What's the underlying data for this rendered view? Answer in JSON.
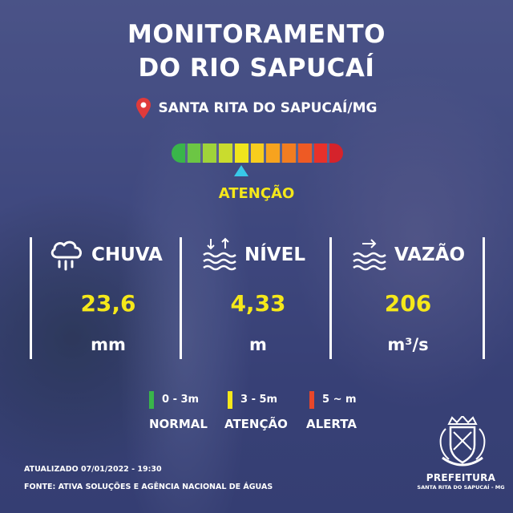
{
  "title": {
    "line1": "MONITORAMENTO",
    "line2": "DO RIO SAPUCAÍ"
  },
  "location": {
    "icon": "map-pin-icon",
    "text": "SANTA RITA DO SAPUCAÍ/MG"
  },
  "scale": {
    "colors": [
      "#39b54a",
      "#6cc644",
      "#9fd33a",
      "#c9dc2e",
      "#f0e51d",
      "#f7cd1e",
      "#f7a31e",
      "#f27d20",
      "#ee5a24",
      "#e8312a",
      "#d5232b"
    ],
    "current_index": 4,
    "status": "ATENÇÃO",
    "pointer_color": "#38c8e8"
  },
  "metrics": {
    "chuva": {
      "icon": "rain-cloud-icon",
      "label": "CHUVA",
      "value": "23,6",
      "unit": "mm"
    },
    "nivel": {
      "icon": "water-level-icon",
      "label": "NÍVEL",
      "value": "4,33",
      "unit": "m"
    },
    "vazao": {
      "icon": "water-flow-icon",
      "label": "VAZÃO",
      "value": "206",
      "unit": "m³/s"
    }
  },
  "legend": {
    "normal": {
      "range": "0 - 3m",
      "name": "NORMAL",
      "color": "#39b54a"
    },
    "atencao": {
      "range": "3 - 5m",
      "name": "ATENÇÃO",
      "color": "#f5e81a"
    },
    "alerta": {
      "range": "5 ~ m",
      "name": "ALERTA",
      "color": "#e8472a"
    }
  },
  "footer": {
    "updated": "ATUALIZADO 07/01/2022 - 19:30",
    "source": "FONTE: ATIVA SOLUÇÕES E AGÊNCIA NACIONAL DE ÁGUAS"
  },
  "prefeitura": {
    "icon": "city-crest-icon",
    "name": "PREFEITURA",
    "city": "SANTA RITA DO SAPUCAÍ - MG"
  },
  "colors": {
    "accent_yellow": "#f5e81a",
    "text": "#ffffff",
    "pin": "#e03a3a"
  }
}
